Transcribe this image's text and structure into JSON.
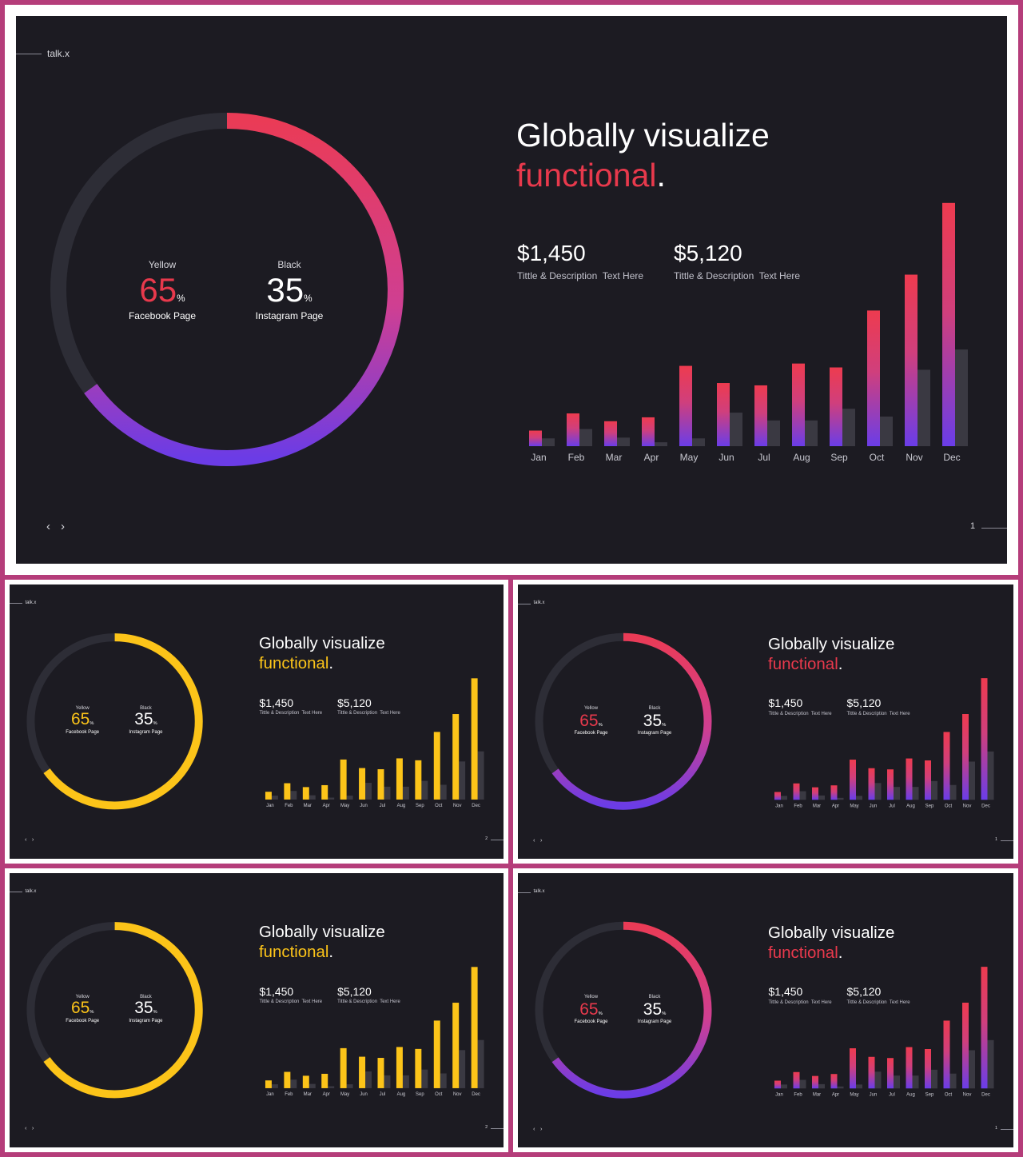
{
  "slides": [
    {
      "theme": "gradient",
      "brand": "talk.x",
      "title_line1": "Globally visualize",
      "title_highlight": "functional",
      "title_period": ".",
      "stat1_value": "$1,450",
      "stat1_desc": "Tittle & Description  Text Here",
      "stat2_value": "$5,120",
      "stat2_desc": "Tittle & Description  Text Here",
      "donut_left_caption": "Yellow",
      "donut_left_value": "65",
      "donut_left_unit": "%",
      "donut_left_label": "Facebook Page",
      "donut_right_caption": "Black",
      "donut_right_value": "35",
      "donut_right_unit": "%",
      "donut_right_label": "Instagram  Page",
      "nav_prev": "‹",
      "nav_next": "›",
      "page_number": "1"
    },
    {
      "theme": "yellow",
      "brand": "talk.x",
      "title_line1": "Globally visualize",
      "title_highlight": "functional",
      "title_period": ".",
      "stat1_value": "$1,450",
      "stat1_desc": "Tittle & Description  Text Here",
      "stat2_value": "$5,120",
      "stat2_desc": "Tittle & Description  Text Here",
      "donut_left_caption": "Yellow",
      "donut_left_value": "65",
      "donut_left_unit": "%",
      "donut_left_label": "Facebook Page",
      "donut_right_caption": "Black",
      "donut_right_value": "35",
      "donut_right_unit": "%",
      "donut_right_label": "Instagram  Page",
      "nav_prev": "‹",
      "nav_next": "›",
      "page_number": "2"
    },
    {
      "theme": "gradient",
      "brand": "talk.x",
      "title_line1": "Globally visualize",
      "title_highlight": "functional",
      "title_period": ".",
      "stat1_value": "$1,450",
      "stat1_desc": "Tittle & Description  Text Here",
      "stat2_value": "$5,120",
      "stat2_desc": "Tittle & Description  Text Here",
      "donut_left_caption": "Yellow",
      "donut_left_value": "65",
      "donut_left_unit": "%",
      "donut_left_label": "Facebook Page",
      "donut_right_caption": "Black",
      "donut_right_value": "35",
      "donut_right_unit": "%",
      "donut_right_label": "Instagram  Page",
      "nav_prev": "‹",
      "nav_next": "›",
      "page_number": "1"
    },
    {
      "theme": "yellow",
      "brand": "talk.x",
      "title_line1": "Globally visualize",
      "title_highlight": "functional",
      "title_period": ".",
      "stat1_value": "$1,450",
      "stat1_desc": "Tittle & Description  Text Here",
      "stat2_value": "$5,120",
      "stat2_desc": "Tittle & Description  Text Here",
      "donut_left_caption": "Yellow",
      "donut_left_value": "65",
      "donut_left_unit": "%",
      "donut_left_label": "Facebook Page",
      "donut_right_caption": "Black",
      "donut_right_value": "35",
      "donut_right_unit": "%",
      "donut_right_label": "Instagram  Page",
      "nav_prev": "‹",
      "nav_next": "›",
      "page_number": "2"
    },
    {
      "theme": "gradient",
      "brand": "talk.x",
      "title_line1": "Globally visualize",
      "title_highlight": "functional",
      "title_period": ".",
      "stat1_value": "$1,450",
      "stat1_desc": "Tittle & Description  Text Here",
      "stat2_value": "$5,120",
      "stat2_desc": "Tittle & Description  Text Here",
      "donut_left_caption": "Yellow",
      "donut_left_value": "65",
      "donut_left_unit": "%",
      "donut_left_label": "Facebook Page",
      "donut_right_caption": "Black",
      "donut_right_value": "35",
      "donut_right_unit": "%",
      "donut_right_label": "Instagram  Page",
      "nav_prev": "‹",
      "nav_next": "›",
      "page_number": "1"
    }
  ],
  "chart_data": [
    {
      "type": "bar",
      "categories": [
        "Jan",
        "Feb",
        "Mar",
        "Apr",
        "May",
        "Jun",
        "Jul",
        "Aug",
        "Sep",
        "Oct",
        "Nov",
        "Dec"
      ],
      "series": [
        {
          "values": [
            20,
            42,
            32,
            37,
            103,
            81,
            78,
            106,
            101,
            174,
            220,
            312
          ]
        },
        {
          "values": [
            10,
            22,
            11,
            5,
            10,
            43,
            33,
            33,
            48,
            38,
            98,
            124
          ]
        }
      ],
      "ylim": [
        0,
        320
      ],
      "grid": false
    },
    {
      "type": "pie",
      "categories": [
        "Facebook Page",
        "Instagram  Page"
      ],
      "values": [
        65,
        35
      ]
    }
  ],
  "colors": {
    "frame_border": "#b53d7a",
    "slide_bg": "#1c1b22",
    "track": "#2d2d36",
    "accent_red": "#e8394c",
    "accent_pink": "#d8407f",
    "accent_purple": "#6a3de8",
    "accent_yellow": "#fcc419",
    "ghost_bar": "#3a3942"
  }
}
